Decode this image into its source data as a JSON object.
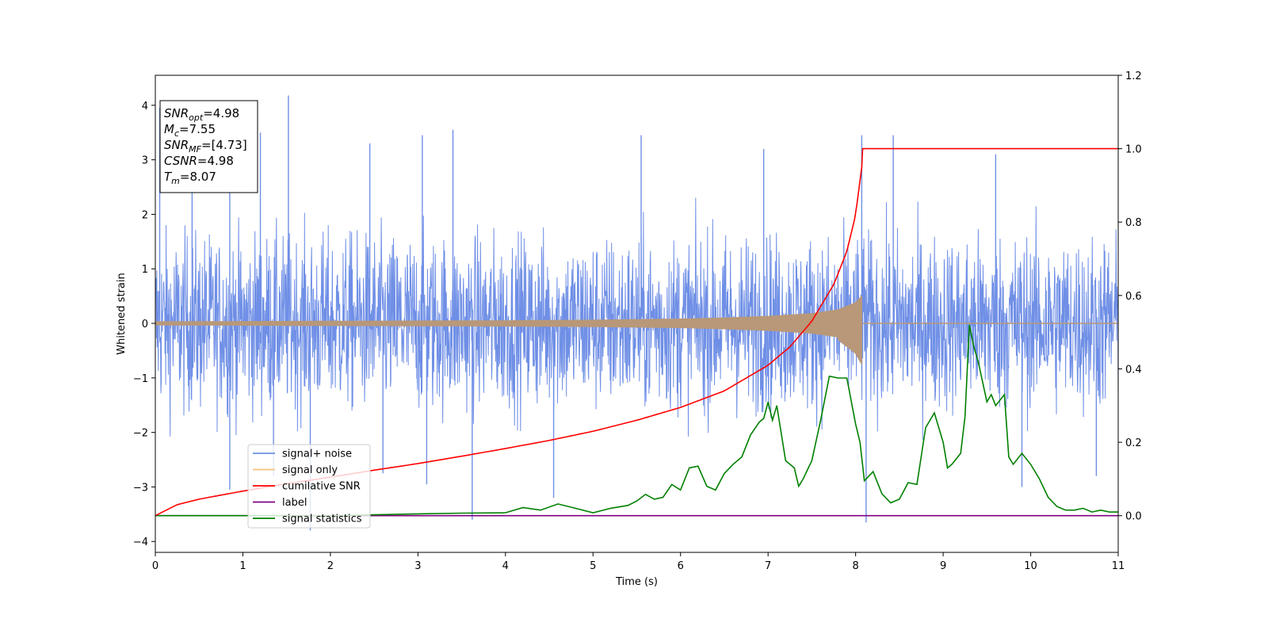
{
  "chart_data": {
    "type": "line",
    "title": "",
    "xlabel": "Time (s)",
    "ylabel_left": "Whitened strain",
    "ylabel_right": "",
    "xlim": [
      0,
      11
    ],
    "ylim_left": [
      -4.2,
      4.55
    ],
    "ylim_right": [
      -0.1,
      1.2
    ],
    "x_ticks": [
      "0",
      "1",
      "2",
      "3",
      "4",
      "5",
      "6",
      "7",
      "8",
      "9",
      "10",
      "11"
    ],
    "y_left_ticks": [
      "−4",
      "−3",
      "−2",
      "−1",
      "0",
      "1",
      "2",
      "3",
      "4"
    ],
    "y_right_ticks": [
      "0.0",
      "0.2",
      "0.4",
      "0.6",
      "0.8",
      "1.0",
      "1.2"
    ],
    "grid": false,
    "legend_placement": "lower-left",
    "colors": {
      "signal_noise": "#6f8fe6",
      "signal_only": "#f5c27a",
      "overlap": "#b89878",
      "cumulative_snr": "#ff0000",
      "label": "#800080",
      "signal_statistics": "#008000"
    },
    "series": [
      {
        "name": "signal+ noise",
        "axis": "left",
        "description_values": {
          "amplitude_range": [
            -3.8,
            4.2
          ],
          "typical_envelope": [
            -2.5,
            3.0
          ]
        },
        "spikes": [
          [
            1.52,
            4.18
          ],
          [
            0.05,
            3.95
          ],
          [
            0.42,
            3.6
          ],
          [
            3.4,
            3.55
          ],
          [
            3.05,
            3.45
          ],
          [
            8.07,
            3.45
          ],
          [
            8.43,
            3.45
          ],
          [
            2.45,
            3.3
          ],
          [
            0.85,
            3.25
          ],
          [
            1.2,
            3.5
          ],
          [
            5.55,
            3.45
          ],
          [
            6.95,
            3.2
          ],
          [
            9.6,
            3.1
          ],
          [
            1.77,
            -3.8
          ],
          [
            3.62,
            -3.6
          ],
          [
            8.12,
            -3.65
          ],
          [
            4.55,
            -3.2
          ],
          [
            3.1,
            -2.95
          ],
          [
            0.85,
            -3.05
          ],
          [
            9.9,
            -3.0
          ],
          [
            1.35,
            -2.8
          ],
          [
            2.6,
            -2.75
          ],
          [
            10.75,
            -2.8
          ]
        ]
      },
      {
        "name": "signal only",
        "axis": "left",
        "envelope": [
          [
            0,
            0.03
          ],
          [
            1,
            0.035
          ],
          [
            2,
            0.04
          ],
          [
            3,
            0.045
          ],
          [
            4,
            0.05
          ],
          [
            5,
            0.06
          ],
          [
            6,
            0.08
          ],
          [
            6.5,
            0.1
          ],
          [
            7,
            0.13
          ],
          [
            7.5,
            0.18
          ],
          [
            7.8,
            0.25
          ],
          [
            8.0,
            0.38
          ],
          [
            8.07,
            0.5
          ],
          [
            8.08,
            0.0
          ],
          [
            11,
            0.0
          ]
        ],
        "envelope_lower": [
          [
            7.8,
            -0.3
          ],
          [
            8.0,
            -0.55
          ],
          [
            8.07,
            -0.75
          ]
        ]
      },
      {
        "name": "cumilative SNR",
        "axis": "right",
        "x": [
          0,
          0.25,
          0.5,
          1,
          1.5,
          2,
          2.5,
          3,
          3.5,
          4,
          4.5,
          5,
          5.5,
          6,
          6.5,
          7,
          7.25,
          7.5,
          7.75,
          7.9,
          8.0,
          8.07,
          8.08,
          11
        ],
        "y": [
          0.0,
          0.03,
          0.045,
          0.067,
          0.087,
          0.105,
          0.124,
          0.142,
          0.162,
          0.183,
          0.205,
          0.23,
          0.26,
          0.295,
          0.34,
          0.41,
          0.46,
          0.53,
          0.63,
          0.72,
          0.82,
          0.95,
          1.0,
          1.0
        ]
      },
      {
        "name": "label",
        "axis": "right",
        "x": [
          0,
          11
        ],
        "y": [
          0.0,
          0.0
        ]
      },
      {
        "name": "signal statistics",
        "axis": "right",
        "x": [
          0,
          1,
          2,
          3,
          3.5,
          4,
          4.2,
          4.4,
          4.6,
          4.8,
          5.0,
          5.2,
          5.4,
          5.5,
          5.6,
          5.7,
          5.8,
          5.9,
          6.0,
          6.1,
          6.2,
          6.3,
          6.4,
          6.5,
          6.6,
          6.7,
          6.8,
          6.9,
          6.95,
          7.0,
          7.05,
          7.1,
          7.2,
          7.3,
          7.35,
          7.4,
          7.5,
          7.6,
          7.7,
          7.8,
          7.9,
          8.0,
          8.05,
          8.1,
          8.2,
          8.3,
          8.4,
          8.5,
          8.6,
          8.7,
          8.8,
          8.9,
          9.0,
          9.05,
          9.1,
          9.2,
          9.25,
          9.3,
          9.35,
          9.4,
          9.5,
          9.55,
          9.6,
          9.7,
          9.75,
          9.8,
          9.9,
          10.0,
          10.1,
          10.2,
          10.3,
          10.4,
          10.5,
          10.6,
          10.7,
          10.8,
          10.9,
          11.0
        ],
        "y": [
          0.0,
          0.0,
          0.0,
          0.005,
          0.007,
          0.008,
          0.022,
          0.015,
          0.032,
          0.02,
          0.008,
          0.02,
          0.028,
          0.04,
          0.058,
          0.045,
          0.05,
          0.085,
          0.07,
          0.13,
          0.135,
          0.08,
          0.07,
          0.115,
          0.14,
          0.16,
          0.22,
          0.255,
          0.265,
          0.31,
          0.26,
          0.3,
          0.15,
          0.13,
          0.08,
          0.1,
          0.15,
          0.26,
          0.38,
          0.375,
          0.375,
          0.25,
          0.2,
          0.095,
          0.12,
          0.06,
          0.035,
          0.045,
          0.09,
          0.085,
          0.24,
          0.28,
          0.2,
          0.13,
          0.14,
          0.17,
          0.27,
          0.52,
          0.46,
          0.42,
          0.31,
          0.33,
          0.3,
          0.33,
          0.16,
          0.14,
          0.17,
          0.14,
          0.1,
          0.05,
          0.025,
          0.015,
          0.015,
          0.02,
          0.01,
          0.015,
          0.01,
          0.01
        ]
      }
    ],
    "annotation_box": {
      "lines": [
        {
          "base": "SNR",
          "sub": "opt",
          "eq": "=4.98"
        },
        {
          "base": "M",
          "sub": "c",
          "eq": "=7.55"
        },
        {
          "base": "SNR",
          "sub": "MF",
          "eq": "=[4.73]"
        },
        {
          "base": "CSNR",
          "sub": "",
          "eq": "=4.98"
        },
        {
          "base": "T",
          "sub": "m",
          "eq": "=8.07"
        }
      ]
    }
  }
}
